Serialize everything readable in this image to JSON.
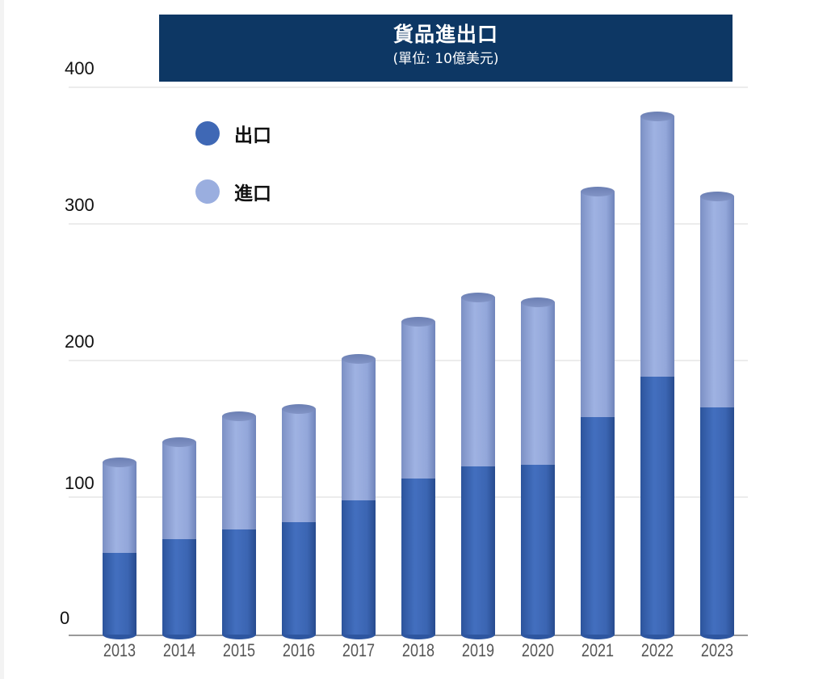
{
  "chart_data": {
    "type": "bar",
    "stacked": true,
    "style": "3d-cylinder",
    "title": "貨品進出口",
    "subtitle": "(單位: 10億美元)",
    "xlabel": "",
    "ylabel": "",
    "ylim": [
      0,
      400
    ],
    "yticks": [
      0,
      100,
      200,
      300,
      400
    ],
    "grid": true,
    "legend_position": "upper-left",
    "categories": [
      "2013",
      "2014",
      "2015",
      "2016",
      "2017",
      "2018",
      "2019",
      "2020",
      "2021",
      "2022",
      "2023"
    ],
    "series": [
      {
        "name": "出口",
        "color": "#3f68b5",
        "values": [
          60,
          70,
          77,
          82,
          98,
          114,
          123,
          124,
          159,
          189,
          166
        ]
      },
      {
        "name": "進口",
        "color": "#97abdc",
        "values": [
          66,
          71,
          83,
          83,
          104,
          115,
          124,
          119,
          165,
          190,
          155
        ]
      }
    ],
    "totals": [
      126,
      141,
      160,
      165,
      202,
      229,
      247,
      243,
      324,
      379,
      321
    ]
  },
  "header": {
    "title": "貨品進出口",
    "subtitle": "(單位: 10億美元)"
  },
  "axis": {
    "y_labels": [
      "400",
      "300",
      "200",
      "100",
      "0"
    ]
  },
  "legend": [
    {
      "label": "出口",
      "color": "#3f68b5"
    },
    {
      "label": "進口",
      "color": "#97abdc"
    }
  ]
}
